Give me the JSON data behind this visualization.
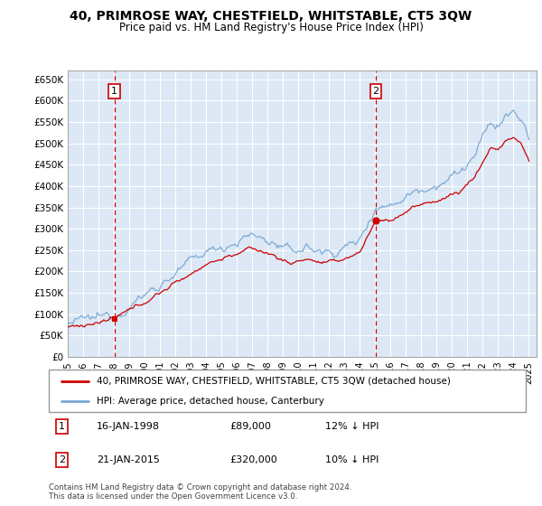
{
  "title": "40, PRIMROSE WAY, CHESTFIELD, WHITSTABLE, CT5 3QW",
  "subtitle": "Price paid vs. HM Land Registry's House Price Index (HPI)",
  "legend_line1": "40, PRIMROSE WAY, CHESTFIELD, WHITSTABLE, CT5 3QW (detached house)",
  "legend_line2": "HPI: Average price, detached house, Canterbury",
  "annotation1_date": "16-JAN-1998",
  "annotation1_price": "£89,000",
  "annotation1_hpi": "12% ↓ HPI",
  "annotation2_date": "21-JAN-2015",
  "annotation2_price": "£320,000",
  "annotation2_hpi": "10% ↓ HPI",
  "footer": "Contains HM Land Registry data © Crown copyright and database right 2024.\nThis data is licensed under the Open Government Licence v3.0.",
  "hpi_color": "#7aa8d4",
  "price_color": "#cc0000",
  "annotation_color": "#cc0000",
  "background_color": "#dce8f5",
  "grid_color": "#ffffff",
  "ylim": [
    0,
    670000
  ],
  "yticks": [
    0,
    50000,
    100000,
    150000,
    200000,
    250000,
    300000,
    350000,
    400000,
    450000,
    500000,
    550000,
    600000,
    650000
  ],
  "purchase1_year": 1998.04,
  "purchase1_val": 89000,
  "purchase2_year": 2015.04,
  "purchase2_val": 320000
}
